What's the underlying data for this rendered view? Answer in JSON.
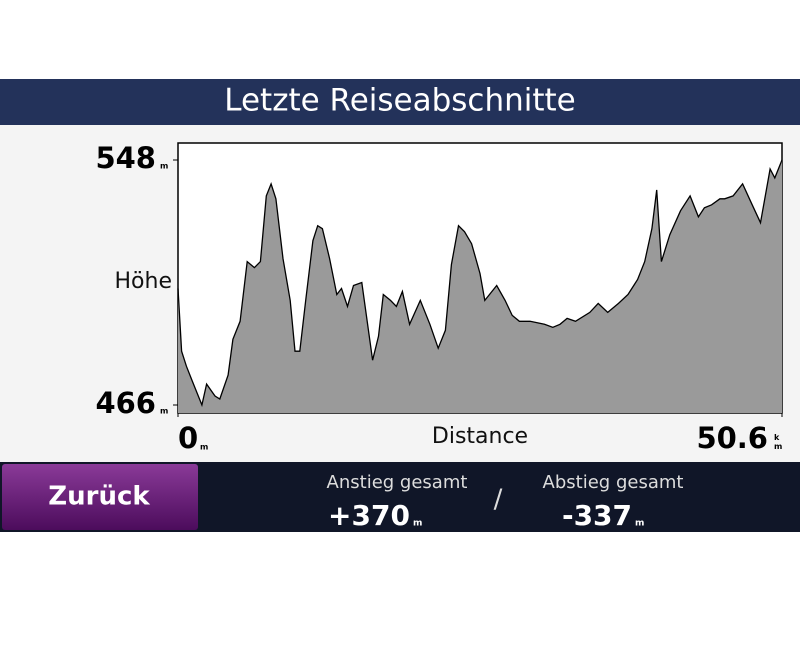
{
  "header": {
    "title": "Letzte Reiseabschnitte"
  },
  "chart_data": {
    "type": "area",
    "y_label": "Höhe",
    "x_label": "Distance",
    "y_unit": "m",
    "x_units": [
      "m",
      "km"
    ],
    "ylim": [
      466,
      548
    ],
    "yticks": [
      466,
      548
    ],
    "xlim": [
      0,
      50.6
    ],
    "xticks": [
      0,
      50.6
    ],
    "color": "#9a9a9a",
    "x": [
      0,
      0.3,
      0.7,
      1.2,
      1.7,
      2.0,
      2.4,
      3.1,
      3.5,
      4.2,
      4.6,
      5.2,
      5.8,
      6.4,
      6.9,
      7.4,
      7.8,
      8.2,
      8.8,
      9.4,
      9.8,
      10.2,
      10.7,
      11.3,
      11.7,
      12.1,
      12.7,
      13.3,
      13.7,
      14.2,
      14.7,
      15.4,
      16.3,
      16.8,
      17.2,
      17.8,
      18.3,
      18.8,
      19.4,
      20.3,
      21.1,
      21.8,
      22.4,
      22.9,
      23.5,
      24.0,
      24.6,
      25.3,
      25.7,
      26.1,
      26.7,
      27.4,
      28.0,
      28.6,
      29.5,
      30.7,
      31.4,
      32.0,
      32.6,
      33.3,
      34.5,
      35.2,
      36.0,
      36.9,
      37.7,
      38.5,
      39.1,
      39.7,
      40.1,
      40.5,
      41.2,
      42.1,
      42.9,
      43.6,
      44.1,
      44.7,
      45.4,
      45.8,
      46.5,
      47.3,
      48.1,
      48.8,
      49.2,
      49.6,
      50.0,
      50.6
    ],
    "values": [
      505,
      484,
      479,
      474,
      469,
      466,
      473,
      469,
      468,
      476,
      488,
      494,
      514,
      512,
      514,
      536,
      540,
      535,
      515,
      501,
      484,
      484,
      501,
      521,
      526,
      525,
      515,
      503,
      505,
      499,
      506,
      507,
      481,
      489,
      503,
      501,
      499,
      504,
      493,
      501,
      493,
      485,
      491,
      513,
      526,
      524,
      520,
      510,
      501,
      503,
      506,
      501,
      496,
      494,
      494,
      493,
      492,
      493,
      495,
      494,
      497,
      500,
      497,
      500,
      503,
      508,
      514,
      525,
      538,
      514,
      523,
      531,
      536,
      529,
      532,
      533,
      535,
      535,
      536,
      540,
      533,
      527,
      536,
      545,
      542,
      548
    ]
  },
  "footer": {
    "button": "Zurück",
    "separator": "/",
    "stats": [
      {
        "label": "Anstieg gesamt",
        "value": "+370",
        "unit": "m"
      },
      {
        "label": "Abstieg gesamt",
        "value": "-337",
        "unit": "m"
      }
    ]
  }
}
